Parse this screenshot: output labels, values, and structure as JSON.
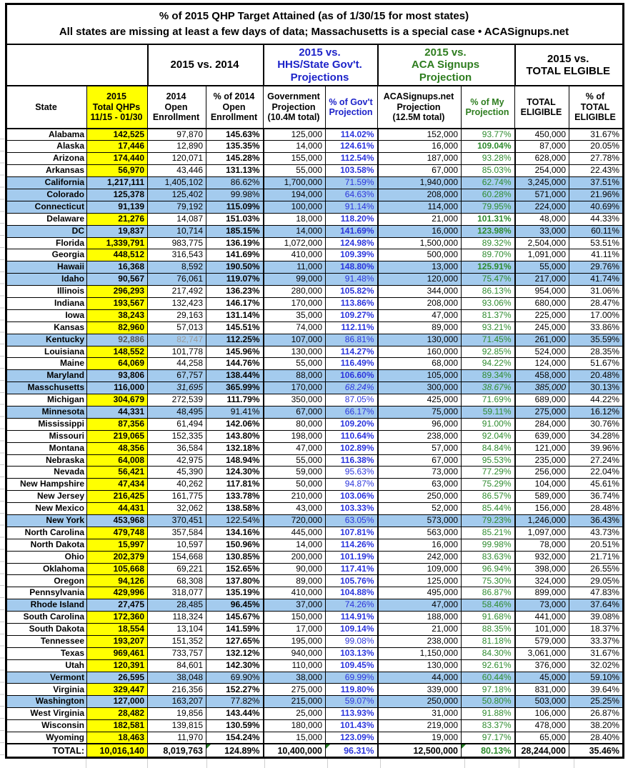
{
  "chart_data": {
    "type": "table",
    "title": "% of 2015 QHP Target Attained (as of 1/30/15 for most states)",
    "subtitle": "All states are missing at least a few days of data; Massachusetts is a special case • ACASignups.net",
    "colors": {
      "highlight_row_blue": "#A4CBEE",
      "qhp_column_yellow": "#FFFF00",
      "gov_pct_blue": "#2B35DD",
      "my_pct_green": "#2E8B2E",
      "header_blue": "#1D23C9",
      "header_green": "#2E7D1F",
      "comment_triangle_green": "#217A21"
    },
    "group_headers": [
      {
        "label": "",
        "span": 2,
        "style": "blank"
      },
      {
        "label": "2015 vs. 2014",
        "span": 2,
        "style": "black"
      },
      {
        "label": "2015 vs.\nHHS/State Gov't.\nProjections",
        "span": 2,
        "style": "blue"
      },
      {
        "label": "2015 vs.\nACA Signups\nProjection",
        "span": 2,
        "style": "green"
      },
      {
        "label": "2015 vs.\nTOTAL ELGIBLE",
        "span": 2,
        "style": "black"
      }
    ],
    "columns": [
      {
        "label": "State",
        "style": "plain"
      },
      {
        "label": "2015\nTotal QHPs\n11/15 - 01/30",
        "style": "yellow"
      },
      {
        "label": "2014\nOpen\nEnrollment",
        "style": "plain"
      },
      {
        "label": "% of 2014\nOpen\nEnrollment",
        "style": "plain"
      },
      {
        "label": "Government\nProjection\n(10.4M total)",
        "style": "plain"
      },
      {
        "label": "% of Gov't\nProjection",
        "style": "blue"
      },
      {
        "label": "ACASignups.net\nProjection\n(12.5M total)",
        "style": "plain"
      },
      {
        "label": "% of My\nProjection",
        "style": "green"
      },
      {
        "label": "TOTAL\nELIGIBLE",
        "style": "plain"
      },
      {
        "label": "% of\nTOTAL\nELIGIBLE",
        "style": "plain"
      }
    ],
    "rows": [
      {
        "s": "Alabama",
        "h": 0,
        "v": [
          "142,525",
          "97,870",
          "145.63%",
          "125,000",
          "114.02%",
          "152,000",
          "93.77%",
          "450,000",
          "31.67%"
        ],
        "b": "110"
      },
      {
        "s": "Alaska",
        "h": 0,
        "v": [
          "17,446",
          "12,890",
          "135.35%",
          "14,000",
          "124.61%",
          "16,000",
          "109.04%",
          "87,000",
          "20.05%"
        ],
        "b": "111"
      },
      {
        "s": "Arizona",
        "h": 0,
        "v": [
          "174,440",
          "120,071",
          "145.28%",
          "155,000",
          "112.54%",
          "187,000",
          "93.28%",
          "628,000",
          "27.78%"
        ],
        "b": "110"
      },
      {
        "s": "Arkansas",
        "h": 0,
        "v": [
          "56,970",
          "43,446",
          "131.13%",
          "55,000",
          "103.58%",
          "67,000",
          "85.03%",
          "254,000",
          "22.43%"
        ],
        "b": "110"
      },
      {
        "s": "California",
        "h": 1,
        "v": [
          "1,217,111",
          "1,405,102",
          "86.62%",
          "1,700,000",
          "71.59%",
          "1,940,000",
          "62.74%",
          "3,245,000",
          "37.51%"
        ],
        "b": "000"
      },
      {
        "s": "Colorado",
        "h": 1,
        "v": [
          "125,378",
          "125,402",
          "99.98%",
          "194,000",
          "64.63%",
          "208,000",
          "60.28%",
          "571,000",
          "21.96%"
        ],
        "b": "000"
      },
      {
        "s": "Connecticut",
        "h": 1,
        "v": [
          "91,139",
          "79,192",
          "115.09%",
          "100,000",
          "91.14%",
          "114,000",
          "79.95%",
          "224,000",
          "40.69%"
        ],
        "b": "100"
      },
      {
        "s": "Delaware",
        "h": 0,
        "v": [
          "21,276",
          "14,087",
          "151.03%",
          "18,000",
          "118.20%",
          "21,000",
          "101.31%",
          "48,000",
          "44.33%"
        ],
        "b": "111"
      },
      {
        "s": "DC",
        "h": 1,
        "v": [
          "19,837",
          "10,714",
          "185.15%",
          "14,000",
          "141.69%",
          "16,000",
          "123.98%",
          "33,000",
          "60.11%"
        ],
        "b": "111"
      },
      {
        "s": "Florida",
        "h": 0,
        "v": [
          "1,339,791",
          "983,775",
          "136.19%",
          "1,072,000",
          "124.98%",
          "1,500,000",
          "89.32%",
          "2,504,000",
          "53.51%"
        ],
        "b": "110"
      },
      {
        "s": "Georgia",
        "h": 0,
        "v": [
          "448,512",
          "316,543",
          "141.69%",
          "410,000",
          "109.39%",
          "500,000",
          "89.70%",
          "1,091,000",
          "41.11%"
        ],
        "b": "110"
      },
      {
        "s": "Hawaii",
        "h": 1,
        "v": [
          "16,368",
          "8,592",
          "190.50%",
          "11,000",
          "148.80%",
          "13,000",
          "125.91%",
          "55,000",
          "29.76%"
        ],
        "b": "111"
      },
      {
        "s": "Idaho",
        "h": 1,
        "v": [
          "90,567",
          "76,061",
          "119.07%",
          "99,000",
          "91.48%",
          "120,000",
          "75.47%",
          "217,000",
          "41.74%"
        ],
        "b": "100"
      },
      {
        "s": "Illinois",
        "h": 0,
        "v": [
          "296,293",
          "217,492",
          "136.23%",
          "280,000",
          "105.82%",
          "344,000",
          "86.13%",
          "954,000",
          "31.06%"
        ],
        "b": "110"
      },
      {
        "s": "Indiana",
        "h": 0,
        "v": [
          "193,567",
          "132,423",
          "146.17%",
          "170,000",
          "113.86%",
          "208,000",
          "93.06%",
          "680,000",
          "28.47%"
        ],
        "b": "110"
      },
      {
        "s": "Iowa",
        "h": 0,
        "v": [
          "38,243",
          "29,163",
          "131.14%",
          "35,000",
          "109.27%",
          "47,000",
          "81.37%",
          "225,000",
          "17.00%"
        ],
        "b": "110"
      },
      {
        "s": "Kansas",
        "h": 0,
        "v": [
          "82,960",
          "57,013",
          "145.51%",
          "74,000",
          "112.11%",
          "89,000",
          "93.21%",
          "245,000",
          "33.86%"
        ],
        "b": "110"
      },
      {
        "s": "Kentucky",
        "h": 1,
        "v": [
          "92,886",
          "82,747",
          "112.25%",
          "107,000",
          "86.81%",
          "130,000",
          "71.45%",
          "261,000",
          "35.59%"
        ],
        "b": "100",
        "gr": [
          0,
          1
        ]
      },
      {
        "s": "Louisiana",
        "h": 0,
        "v": [
          "148,552",
          "101,778",
          "145.96%",
          "130,000",
          "114.27%",
          "160,000",
          "92.85%",
          "524,000",
          "28.35%"
        ],
        "b": "110"
      },
      {
        "s": "Maine",
        "h": 0,
        "v": [
          "64,069",
          "44,258",
          "144.76%",
          "55,000",
          "116.49%",
          "68,000",
          "94.22%",
          "124,000",
          "51.67%"
        ],
        "b": "110"
      },
      {
        "s": "Maryland",
        "h": 1,
        "v": [
          "93,806",
          "67,757",
          "138.44%",
          "88,000",
          "106.60%",
          "105,000",
          "89.34%",
          "458,000",
          "20.48%"
        ],
        "b": "110"
      },
      {
        "s": "Masschusetts",
        "h": 1,
        "v": [
          "116,000",
          "31,695",
          "365.99%",
          "170,000",
          "68.24%",
          "300,000",
          "38.67%",
          "385,000",
          "30.13%"
        ],
        "b": "100",
        "it": [
          1,
          4,
          6,
          7
        ]
      },
      {
        "s": "Michigan",
        "h": 0,
        "v": [
          "304,679",
          "272,539",
          "111.79%",
          "350,000",
          "87.05%",
          "425,000",
          "71.69%",
          "689,000",
          "44.22%"
        ],
        "b": "100"
      },
      {
        "s": "Minnesota",
        "h": 1,
        "v": [
          "44,331",
          "48,495",
          "91.41%",
          "67,000",
          "66.17%",
          "75,000",
          "59.11%",
          "275,000",
          "16.12%"
        ],
        "b": "000"
      },
      {
        "s": "Mississippi",
        "h": 0,
        "v": [
          "87,356",
          "61,494",
          "142.06%",
          "80,000",
          "109.20%",
          "96,000",
          "91.00%",
          "284,000",
          "30.76%"
        ],
        "b": "110"
      },
      {
        "s": "Missouri",
        "h": 0,
        "v": [
          "219,065",
          "152,335",
          "143.80%",
          "198,000",
          "110.64%",
          "238,000",
          "92.04%",
          "639,000",
          "34.28%"
        ],
        "b": "110"
      },
      {
        "s": "Montana",
        "h": 0,
        "v": [
          "48,356",
          "36,584",
          "132.18%",
          "47,000",
          "102.89%",
          "57,000",
          "84.84%",
          "121,000",
          "39.96%"
        ],
        "b": "110"
      },
      {
        "s": "Nebraska",
        "h": 0,
        "v": [
          "64,008",
          "42,975",
          "148.94%",
          "55,000",
          "116.38%",
          "67,000",
          "95.53%",
          "235,000",
          "27.24%"
        ],
        "b": "110"
      },
      {
        "s": "Nevada",
        "h": 0,
        "v": [
          "56,421",
          "45,390",
          "124.30%",
          "59,000",
          "95.63%",
          "73,000",
          "77.29%",
          "256,000",
          "22.04%"
        ],
        "b": "100"
      },
      {
        "s": "New Hampshire",
        "h": 0,
        "v": [
          "47,434",
          "40,262",
          "117.81%",
          "50,000",
          "94.87%",
          "63,000",
          "75.29%",
          "104,000",
          "45.61%"
        ],
        "b": "100"
      },
      {
        "s": "New Jersey",
        "h": 0,
        "v": [
          "216,425",
          "161,775",
          "133.78%",
          "210,000",
          "103.06%",
          "250,000",
          "86.57%",
          "589,000",
          "36.74%"
        ],
        "b": "110"
      },
      {
        "s": "New Mexico",
        "h": 0,
        "v": [
          "44,431",
          "32,062",
          "138.58%",
          "43,000",
          "103.33%",
          "52,000",
          "85.44%",
          "156,000",
          "28.48%"
        ],
        "b": "110"
      },
      {
        "s": "New York",
        "h": 1,
        "v": [
          "453,968",
          "370,451",
          "122.54%",
          "720,000",
          "63.05%",
          "573,000",
          "79.23%",
          "1,246,000",
          "36.43%"
        ],
        "b": "000"
      },
      {
        "s": "North Carolina",
        "h": 0,
        "v": [
          "479,748",
          "357,584",
          "134.16%",
          "445,000",
          "107.81%",
          "563,000",
          "85.21%",
          "1,097,000",
          "43.73%"
        ],
        "b": "110"
      },
      {
        "s": "North Dakota",
        "h": 0,
        "v": [
          "15,997",
          "10,597",
          "150.96%",
          "14,000",
          "114.26%",
          "16,000",
          "99.98%",
          "78,000",
          "20.51%"
        ],
        "b": "110"
      },
      {
        "s": "Ohio",
        "h": 0,
        "v": [
          "202,379",
          "154,668",
          "130.85%",
          "200,000",
          "101.19%",
          "242,000",
          "83.63%",
          "932,000",
          "21.71%"
        ],
        "b": "110"
      },
      {
        "s": "Oklahoma",
        "h": 0,
        "v": [
          "105,668",
          "69,221",
          "152.65%",
          "90,000",
          "117.41%",
          "109,000",
          "96.94%",
          "398,000",
          "26.55%"
        ],
        "b": "110"
      },
      {
        "s": "Oregon",
        "h": 0,
        "v": [
          "94,126",
          "68,308",
          "137.80%",
          "89,000",
          "105.76%",
          "125,000",
          "75.30%",
          "324,000",
          "29.05%"
        ],
        "b": "110"
      },
      {
        "s": "Pennsylvania",
        "h": 0,
        "v": [
          "429,996",
          "318,077",
          "135.19%",
          "410,000",
          "104.88%",
          "495,000",
          "86.87%",
          "899,000",
          "47.83%"
        ],
        "b": "110"
      },
      {
        "s": "Rhode Island",
        "h": 1,
        "v": [
          "27,475",
          "28,485",
          "96.45%",
          "37,000",
          "74.26%",
          "47,000",
          "58.46%",
          "73,000",
          "37.64%"
        ],
        "b": "100"
      },
      {
        "s": "South Carolina",
        "h": 0,
        "v": [
          "172,360",
          "118,324",
          "145.67%",
          "150,000",
          "114.91%",
          "188,000",
          "91.68%",
          "441,000",
          "39.08%"
        ],
        "b": "110"
      },
      {
        "s": "South Dakota",
        "h": 0,
        "v": [
          "18,554",
          "13,104",
          "141.59%",
          "17,000",
          "109.14%",
          "21,000",
          "88.35%",
          "101,000",
          "18.37%"
        ],
        "b": "110"
      },
      {
        "s": "Tennessee",
        "h": 0,
        "v": [
          "193,207",
          "151,352",
          "127.65%",
          "195,000",
          "99.08%",
          "238,000",
          "81.18%",
          "579,000",
          "33.37%"
        ],
        "b": "100"
      },
      {
        "s": "Texas",
        "h": 0,
        "v": [
          "969,461",
          "733,757",
          "132.12%",
          "940,000",
          "103.13%",
          "1,150,000",
          "84.30%",
          "3,061,000",
          "31.67%"
        ],
        "b": "110"
      },
      {
        "s": "Utah",
        "h": 0,
        "v": [
          "120,391",
          "84,601",
          "142.30%",
          "110,000",
          "109.45%",
          "130,000",
          "92.61%",
          "376,000",
          "32.02%"
        ],
        "b": "110"
      },
      {
        "s": "Vermont",
        "h": 1,
        "v": [
          "26,595",
          "38,048",
          "69.90%",
          "38,000",
          "69.99%",
          "44,000",
          "60.44%",
          "45,000",
          "59.10%"
        ],
        "b": "000"
      },
      {
        "s": "Virginia",
        "h": 0,
        "v": [
          "329,447",
          "216,356",
          "152.27%",
          "275,000",
          "119.80%",
          "339,000",
          "97.18%",
          "831,000",
          "39.64%"
        ],
        "b": "110"
      },
      {
        "s": "Washington",
        "h": 1,
        "v": [
          "127,000",
          "163,207",
          "77.82%",
          "215,000",
          "59.07%",
          "250,000",
          "50.80%",
          "503,000",
          "25.25%"
        ],
        "b": "000"
      },
      {
        "s": "West Virginia",
        "h": 0,
        "v": [
          "28,482",
          "19,856",
          "143.44%",
          "25,000",
          "113.93%",
          "31,000",
          "91.88%",
          "106,000",
          "26.87%"
        ],
        "b": "110"
      },
      {
        "s": "Wisconsin",
        "h": 0,
        "v": [
          "182,581",
          "139,815",
          "130.59%",
          "180,000",
          "101.43%",
          "219,000",
          "83.37%",
          "478,000",
          "38.20%"
        ],
        "b": "110"
      },
      {
        "s": "Wyoming",
        "h": 0,
        "v": [
          "18,463",
          "11,970",
          "154.24%",
          "15,000",
          "123.09%",
          "19,000",
          "97.17%",
          "65,000",
          "28.40%"
        ],
        "b": "110"
      }
    ],
    "total": {
      "s": "TOTAL:",
      "v": [
        "10,016,140",
        "8,019,763",
        "124.89%",
        "10,400,000",
        "96.31%",
        "12,500,000",
        "80.13%",
        "28,244,000",
        "35.46%"
      ],
      "comment_markers_on": [
        "% of 2014",
        "% of Gov't",
        "% of My"
      ]
    }
  }
}
